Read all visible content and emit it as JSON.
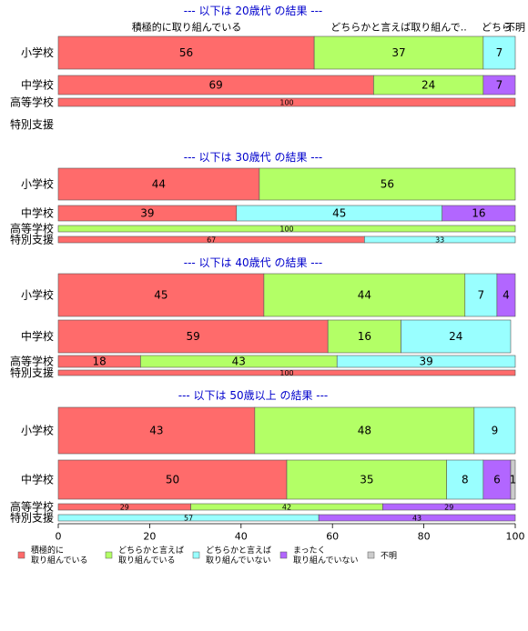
{
  "colors": {
    "active": "#ff6b6b",
    "somewhat_active": "#b3ff66",
    "somewhat_inactive": "#99ffff",
    "not_at_all": "#b266ff",
    "unknown": "#cccccc",
    "group_title": "#0000cc"
  },
  "top_headers": [
    "積極的に取り組んでいる",
    "どちらかと言えば取り組んで..",
    "どちら..",
    "不明"
  ],
  "chart_data": {
    "type": "bar",
    "orientation": "horizontal",
    "stacked": true,
    "xlim": [
      0,
      100
    ],
    "x_ticks": [
      0,
      20,
      40,
      60,
      80,
      100
    ],
    "categories": [
      "小学校",
      "中学校",
      "高等学校",
      "特別支援"
    ],
    "legend": {
      "placement": "bottom",
      "entries": [
        {
          "key": "active",
          "label": "積極的に\n取り組んでいる"
        },
        {
          "key": "somewhat_active",
          "label": "どちらかと言えば\n取り組んでいる"
        },
        {
          "key": "somewhat_inactive",
          "label": "どちらかと言えば\n取り組んでいない"
        },
        {
          "key": "not_at_all",
          "label": "まったく\n取り組んでいない"
        },
        {
          "key": "unknown",
          "label": "不明"
        }
      ]
    },
    "groups": [
      {
        "title": "--- 以下は 20歳代 の結果 ---",
        "rows": [
          {
            "category": "小学校",
            "values": {
              "active": 56,
              "somewhat_active": 37,
              "somewhat_inactive": 7,
              "not_at_all": 0,
              "unknown": 0
            }
          },
          {
            "category": "中学校",
            "values": {
              "active": 69,
              "somewhat_active": 24,
              "somewhat_inactive": 0,
              "not_at_all": 7,
              "unknown": 0
            }
          },
          {
            "category": "高等学校",
            "values": {
              "active": 100,
              "somewhat_active": 0,
              "somewhat_inactive": 0,
              "not_at_all": 0,
              "unknown": 0
            }
          },
          {
            "category": "特別支援",
            "values": null
          }
        ]
      },
      {
        "title": "--- 以下は 30歳代 の結果 ---",
        "rows": [
          {
            "category": "小学校",
            "values": {
              "active": 44,
              "somewhat_active": 56,
              "somewhat_inactive": 0,
              "not_at_all": 0,
              "unknown": 0
            }
          },
          {
            "category": "中学校",
            "values": {
              "active": 39,
              "somewhat_active": 0,
              "somewhat_inactive": 45,
              "not_at_all": 16,
              "unknown": 0
            }
          },
          {
            "category": "高等学校",
            "values": {
              "active": 0,
              "somewhat_active": 100,
              "somewhat_inactive": 0,
              "not_at_all": 0,
              "unknown": 0
            }
          },
          {
            "category": "特別支援",
            "values": {
              "active": 67,
              "somewhat_active": 0,
              "somewhat_inactive": 33,
              "not_at_all": 0,
              "unknown": 0
            }
          }
        ]
      },
      {
        "title": "--- 以下は 40歳代 の結果 ---",
        "rows": [
          {
            "category": "小学校",
            "values": {
              "active": 45,
              "somewhat_active": 44,
              "somewhat_inactive": 7,
              "not_at_all": 4,
              "unknown": 0
            }
          },
          {
            "category": "中学校",
            "values": {
              "active": 59,
              "somewhat_active": 16,
              "somewhat_inactive": 24,
              "not_at_all": 0,
              "unknown": 0
            }
          },
          {
            "category": "高等学校",
            "values": {
              "active": 18,
              "somewhat_active": 43,
              "somewhat_inactive": 39,
              "not_at_all": 0,
              "unknown": 0
            }
          },
          {
            "category": "特別支援",
            "values": {
              "active": 100,
              "somewhat_active": 0,
              "somewhat_inactive": 0,
              "not_at_all": 0,
              "unknown": 0
            }
          }
        ]
      },
      {
        "title": "--- 以下は 50歳以上 の結果 ---",
        "rows": [
          {
            "category": "小学校",
            "values": {
              "active": 43,
              "somewhat_active": 48,
              "somewhat_inactive": 9,
              "not_at_all": 0,
              "unknown": 0
            }
          },
          {
            "category": "中学校",
            "values": {
              "active": 50,
              "somewhat_active": 35,
              "somewhat_inactive": 8,
              "not_at_all": 6,
              "unknown": 1
            }
          },
          {
            "category": "高等学校",
            "values": {
              "active": 29,
              "somewhat_active": 42,
              "somewhat_inactive": 0,
              "not_at_all": 29,
              "unknown": 0
            }
          },
          {
            "category": "特別支援",
            "values": {
              "active": 0,
              "somewhat_active": 0,
              "somewhat_inactive": 57,
              "not_at_all": 43,
              "unknown": 0
            }
          }
        ]
      }
    ]
  }
}
